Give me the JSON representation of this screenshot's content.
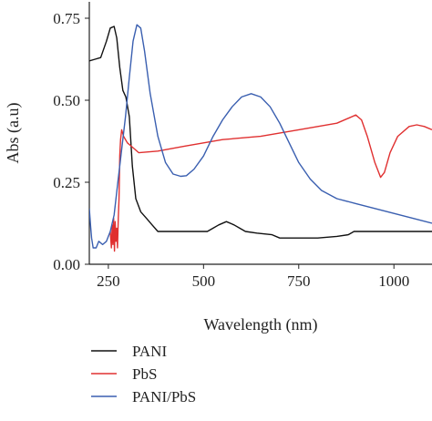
{
  "chart_data": {
    "type": "line",
    "xlabel": "Wavelength (nm)",
    "ylabel": "Abs (a.u)",
    "xlim": [
      200,
      1100
    ],
    "ylim": [
      0,
      0.8
    ],
    "x_ticks": [
      250,
      500,
      750,
      1000
    ],
    "x_tick_labels": [
      "250",
      "500",
      "750",
      "1000"
    ],
    "y_ticks": [
      0,
      0.25,
      0.5,
      0.75
    ],
    "y_tick_labels": [
      "0.00",
      "0.25",
      "0.50",
      "0.75"
    ],
    "grid": false,
    "legend_position": "bottom",
    "series": [
      {
        "name": "PANI",
        "color": "#111111",
        "points": [
          [
            200,
            0.62
          ],
          [
            215,
            0.625
          ],
          [
            230,
            0.63
          ],
          [
            245,
            0.68
          ],
          [
            255,
            0.72
          ],
          [
            265,
            0.725
          ],
          [
            272,
            0.69
          ],
          [
            280,
            0.6
          ],
          [
            288,
            0.53
          ],
          [
            296,
            0.51
          ],
          [
            305,
            0.45
          ],
          [
            313,
            0.3
          ],
          [
            322,
            0.2
          ],
          [
            335,
            0.16
          ],
          [
            350,
            0.14
          ],
          [
            365,
            0.12
          ],
          [
            380,
            0.1
          ],
          [
            400,
            0.1
          ],
          [
            450,
            0.1
          ],
          [
            510,
            0.1
          ],
          [
            525,
            0.11
          ],
          [
            540,
            0.12
          ],
          [
            560,
            0.13
          ],
          [
            580,
            0.12
          ],
          [
            595,
            0.11
          ],
          [
            610,
            0.1
          ],
          [
            640,
            0.095
          ],
          [
            680,
            0.09
          ],
          [
            700,
            0.08
          ],
          [
            800,
            0.08
          ],
          [
            850,
            0.085
          ],
          [
            880,
            0.09
          ],
          [
            895,
            0.1
          ],
          [
            950,
            0.1
          ],
          [
            1100,
            0.1
          ]
        ]
      },
      {
        "name": "PbS",
        "color": "#e03030",
        "points": [
          [
            255,
            0.1
          ],
          [
            258,
            0.05
          ],
          [
            260,
            0.12
          ],
          [
            262,
            0.06
          ],
          [
            264,
            0.14
          ],
          [
            266,
            0.04
          ],
          [
            268,
            0.13
          ],
          [
            270,
            0.07
          ],
          [
            272,
            0.11
          ],
          [
            274,
            0.05
          ],
          [
            276,
            0.14
          ],
          [
            278,
            0.2
          ],
          [
            280,
            0.33
          ],
          [
            282,
            0.38
          ],
          [
            285,
            0.41
          ],
          [
            290,
            0.39
          ],
          [
            300,
            0.37
          ],
          [
            310,
            0.36
          ],
          [
            330,
            0.34
          ],
          [
            380,
            0.345
          ],
          [
            450,
            0.36
          ],
          [
            550,
            0.38
          ],
          [
            650,
            0.39
          ],
          [
            750,
            0.41
          ],
          [
            800,
            0.42
          ],
          [
            850,
            0.43
          ],
          [
            880,
            0.445
          ],
          [
            900,
            0.455
          ],
          [
            915,
            0.44
          ],
          [
            930,
            0.39
          ],
          [
            950,
            0.31
          ],
          [
            965,
            0.265
          ],
          [
            975,
            0.28
          ],
          [
            990,
            0.34
          ],
          [
            1010,
            0.39
          ],
          [
            1040,
            0.42
          ],
          [
            1060,
            0.425
          ],
          [
            1080,
            0.42
          ],
          [
            1100,
            0.41
          ]
        ]
      },
      {
        "name": "PANI/PbS",
        "color": "#3a5fb0",
        "points": [
          [
            200,
            0.17
          ],
          [
            203,
            0.12
          ],
          [
            206,
            0.08
          ],
          [
            210,
            0.05
          ],
          [
            218,
            0.05
          ],
          [
            225,
            0.07
          ],
          [
            235,
            0.06
          ],
          [
            245,
            0.07
          ],
          [
            255,
            0.1
          ],
          [
            265,
            0.15
          ],
          [
            275,
            0.25
          ],
          [
            285,
            0.35
          ],
          [
            295,
            0.45
          ],
          [
            305,
            0.57
          ],
          [
            315,
            0.68
          ],
          [
            325,
            0.73
          ],
          [
            335,
            0.72
          ],
          [
            345,
            0.65
          ],
          [
            360,
            0.52
          ],
          [
            380,
            0.39
          ],
          [
            400,
            0.31
          ],
          [
            420,
            0.275
          ],
          [
            440,
            0.268
          ],
          [
            455,
            0.27
          ],
          [
            475,
            0.29
          ],
          [
            500,
            0.33
          ],
          [
            525,
            0.39
          ],
          [
            550,
            0.44
          ],
          [
            575,
            0.48
          ],
          [
            600,
            0.51
          ],
          [
            625,
            0.52
          ],
          [
            650,
            0.51
          ],
          [
            675,
            0.48
          ],
          [
            700,
            0.43
          ],
          [
            725,
            0.37
          ],
          [
            750,
            0.31
          ],
          [
            780,
            0.26
          ],
          [
            810,
            0.225
          ],
          [
            850,
            0.2
          ],
          [
            900,
            0.185
          ],
          [
            950,
            0.17
          ],
          [
            1000,
            0.155
          ],
          [
            1050,
            0.14
          ],
          [
            1100,
            0.125
          ]
        ]
      }
    ]
  }
}
